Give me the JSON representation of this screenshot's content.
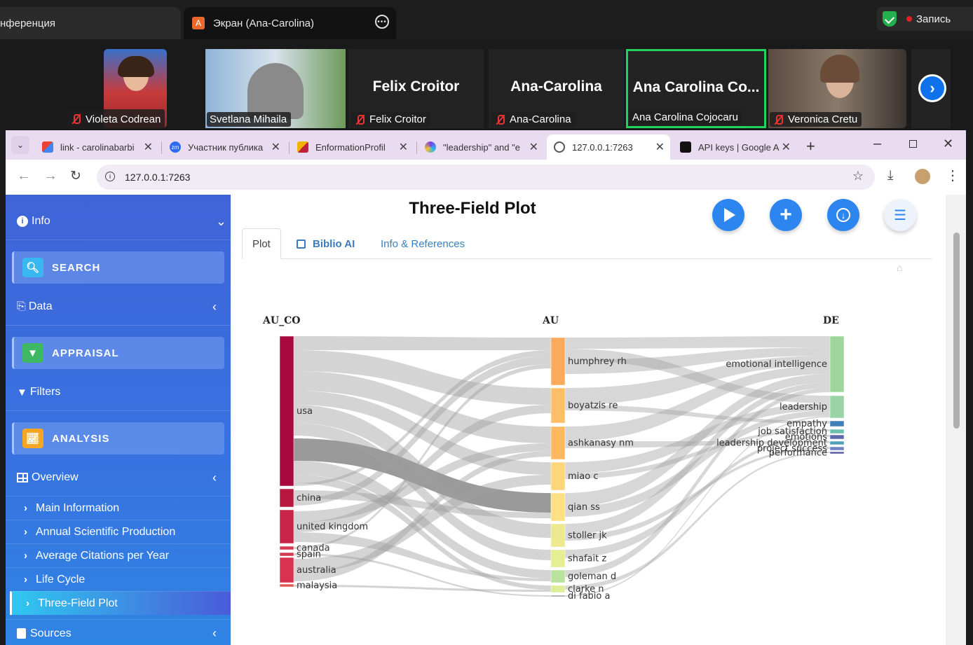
{
  "zoom": {
    "tabs": [
      {
        "label": "нференция"
      },
      {
        "label": "Экран (Ana-Carolina)",
        "icon_letter": "A"
      }
    ],
    "recording_label": "Запись",
    "participants": [
      {
        "name": "Violeta Codrean"
      },
      {
        "name": "Svetlana Mihaila"
      },
      {
        "name": "Felix Croitor",
        "display": "Felix Croitor"
      },
      {
        "name": "Ana-Carolina",
        "display": "Ana-Carolina"
      },
      {
        "name": "Ana Carolina Cojocaru",
        "display": "Ana Carolina Co..."
      },
      {
        "name": "Veronica Cretu"
      }
    ]
  },
  "browser": {
    "tabs": [
      {
        "label": "link - carolinabarbi"
      },
      {
        "label": "Участник публика"
      },
      {
        "label": "EnformationProfil"
      },
      {
        "label": "\"leadership\" and \"e"
      },
      {
        "label": "127.0.0.1:7263"
      },
      {
        "label": "API keys | Google A"
      }
    ],
    "url": "127.0.0.1:7263"
  },
  "sidebar": {
    "info": "Info",
    "search": "SEARCH",
    "data": "Data",
    "appraisal": "APPRAISAL",
    "filters": "Filters",
    "analysis": "ANALYSIS",
    "overview": "Overview",
    "items": [
      {
        "label": "Main Information"
      },
      {
        "label": "Annual Scientific Production"
      },
      {
        "label": "Average Citations per Year"
      },
      {
        "label": "Life Cycle"
      },
      {
        "label": "Three-Field Plot"
      }
    ],
    "sources": "Sources"
  },
  "main": {
    "title": "Three-Field Plot",
    "tabs": [
      {
        "label": "Plot"
      },
      {
        "label": "Biblio AI"
      },
      {
        "label": "Info & References"
      }
    ]
  },
  "chart_data": {
    "type": "sankey",
    "columns": [
      "AU_CO",
      "AU",
      "DE"
    ],
    "left_nodes": [
      {
        "name": "usa",
        "color": "#a8093f"
      },
      {
        "name": "china",
        "color": "#b8183f"
      },
      {
        "name": "united kingdom",
        "color": "#c82447"
      },
      {
        "name": "canada",
        "color": "#d43a52"
      },
      {
        "name": "spain",
        "color": "#d43a52"
      },
      {
        "name": "australia",
        "color": "#d8324e"
      },
      {
        "name": "malaysia",
        "color": "#e05a55"
      }
    ],
    "middle_nodes": [
      {
        "name": "humphrey rh",
        "color": "#fba95b"
      },
      {
        "name": "boyatzis re",
        "color": "#fdbf66"
      },
      {
        "name": "ashkanasy nm",
        "color": "#fdb860"
      },
      {
        "name": "miao c",
        "color": "#fdd67a"
      },
      {
        "name": "qian ss",
        "color": "#fde082"
      },
      {
        "name": "stoller jk",
        "color": "#eee98e"
      },
      {
        "name": "shafait z",
        "color": "#e5ee92"
      },
      {
        "name": "goleman d",
        "color": "#b9e29c"
      },
      {
        "name": "clarke n",
        "color": "#dcef98"
      },
      {
        "name": "di fabio a",
        "color": "#9c9c9c"
      }
    ],
    "right_nodes": [
      {
        "name": "emotional intelligence",
        "color": "#9fd69e"
      },
      {
        "name": "leadership",
        "color": "#9ad4a6"
      },
      {
        "name": "empathy",
        "color": "#3f7fb6"
      },
      {
        "name": "job satisfaction",
        "color": "#6dbfae"
      },
      {
        "name": "emotions",
        "color": "#5b6bab"
      },
      {
        "name": "leadership development",
        "color": "#4fa0b8"
      },
      {
        "name": "project success",
        "color": "#6f84c0"
      },
      {
        "name": "performance",
        "color": "#5a5d9f"
      }
    ]
  }
}
